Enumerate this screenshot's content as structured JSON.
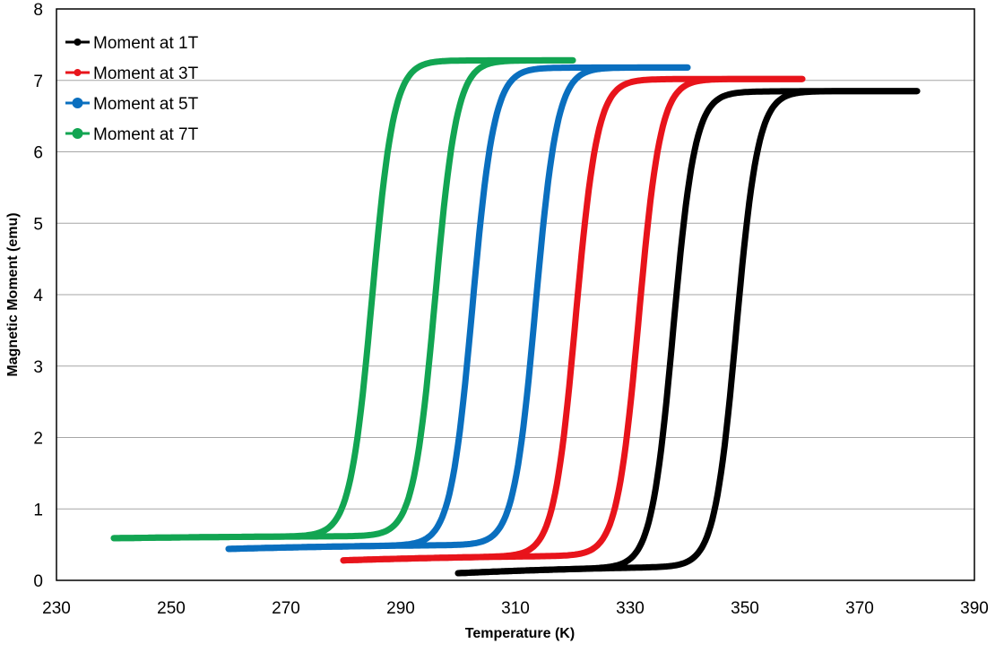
{
  "chart_data": {
    "type": "line",
    "title": "",
    "xlabel": "Temperature (K)",
    "ylabel": "Magnetic Moment (emu)",
    "xlim": [
      230,
      390
    ],
    "ylim": [
      0,
      8
    ],
    "x_ticks": [
      "230",
      "250",
      "270",
      "290",
      "310",
      "330",
      "350",
      "370",
      "390"
    ],
    "y_ticks": [
      "0",
      "1",
      "2",
      "3",
      "4",
      "5",
      "6",
      "7",
      "8"
    ],
    "grid": "horizontal",
    "legend_position": "top-left",
    "series": [
      {
        "name": "Moment at 1T",
        "color": "#000000",
        "heating": {
          "tmin": 300,
          "tmax": 380,
          "mlow": 0.2,
          "mhigh": 6.85,
          "tc": 348.5,
          "tend": 6.75
        },
        "cooling": {
          "tmin": 300,
          "tmax": 380,
          "mlow": 0.2,
          "mhigh": 6.85,
          "tc": 337.5,
          "tend": 6.75
        }
      },
      {
        "name": "Moment at 3T",
        "color": "#e8141b",
        "heating": {
          "tmin": 280,
          "tmax": 360,
          "mlow": 0.35,
          "mhigh": 7.02,
          "tc": 331.5,
          "tend": 6.95
        },
        "cooling": {
          "tmin": 280,
          "tmax": 360,
          "mlow": 0.35,
          "mhigh": 7.02,
          "tc": 320.5,
          "tend": 6.95
        }
      },
      {
        "name": "Moment at 5T",
        "color": "#0a6fbf",
        "heating": {
          "tmin": 260,
          "tmax": 340,
          "mlow": 0.5,
          "mhigh": 7.18,
          "tc": 313.5,
          "tend": 7.12
        },
        "cooling": {
          "tmin": 260,
          "tmax": 340,
          "mlow": 0.5,
          "mhigh": 7.18,
          "tc": 302.5,
          "tend": 7.12
        }
      },
      {
        "name": "Moment at 7T",
        "color": "#12a552",
        "heating": {
          "tmin": 240,
          "tmax": 320,
          "mlow": 0.62,
          "mhigh": 7.28,
          "tc": 296.0,
          "tend": 7.25
        },
        "cooling": {
          "tmin": 240,
          "tmax": 320,
          "mlow": 0.62,
          "mhigh": 7.28,
          "tc": 285.0,
          "tend": 7.25
        }
      }
    ]
  }
}
